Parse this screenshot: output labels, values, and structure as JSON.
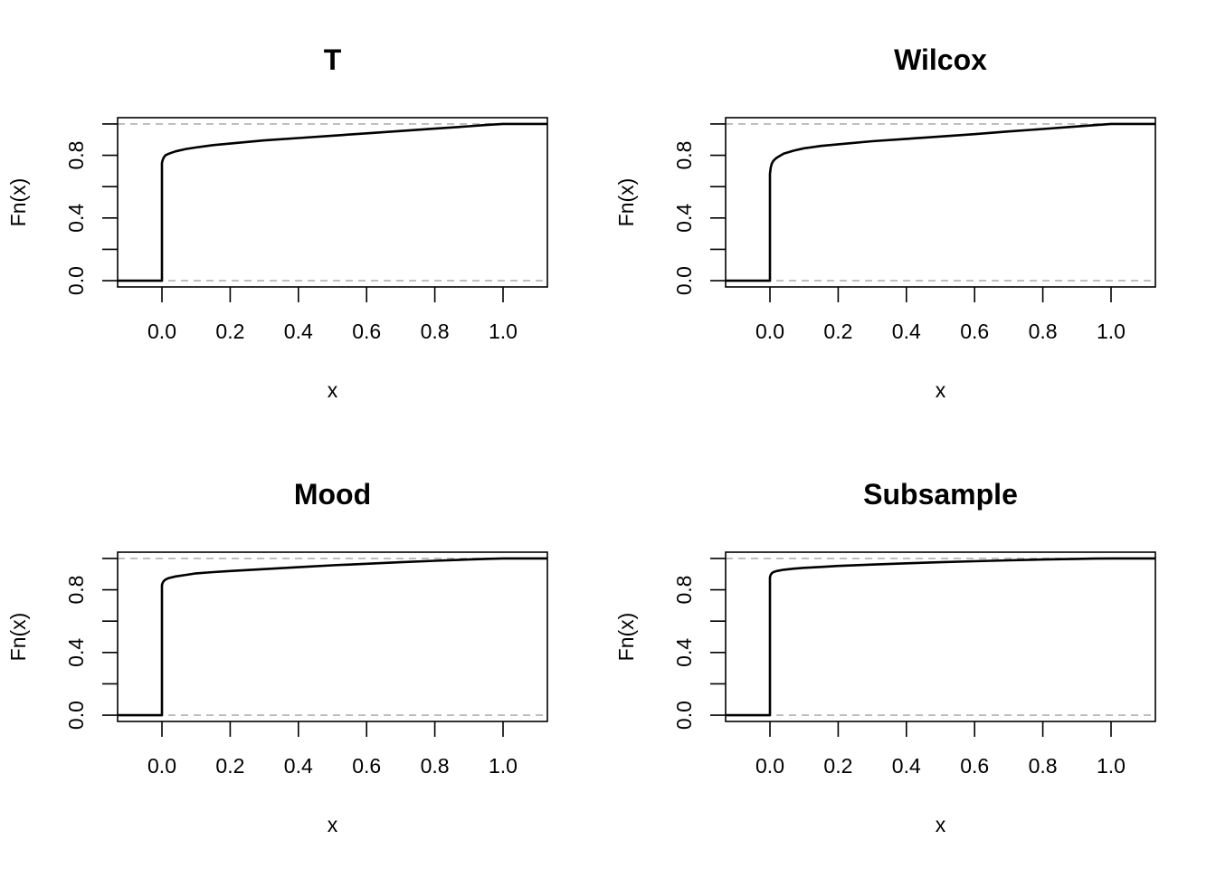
{
  "chart_data": [
    {
      "type": "line",
      "title": "T",
      "xlabel": "x",
      "ylabel": "Fn(x)",
      "xlim": [
        -0.13,
        1.13
      ],
      "ylim": [
        -0.04,
        1.04
      ],
      "xticks": [
        "0.0",
        "0.2",
        "0.4",
        "0.6",
        "0.8",
        "1.0"
      ],
      "yticks": [
        "0.0",
        "0.4",
        "0.8"
      ],
      "reference_lines": [
        0,
        1
      ],
      "series": [
        {
          "x": [
            -0.13,
            0,
            0,
            0.002,
            0.005,
            0.01,
            0.02,
            0.04,
            0.07,
            0.1,
            0.15,
            0.2,
            0.3,
            0.4,
            0.5,
            0.6,
            0.7,
            0.8,
            0.9,
            0.95,
            1.0,
            1.13
          ],
          "y": [
            0,
            0,
            0.75,
            0.77,
            0.785,
            0.8,
            0.81,
            0.825,
            0.84,
            0.85,
            0.865,
            0.875,
            0.895,
            0.91,
            0.925,
            0.94,
            0.955,
            0.97,
            0.985,
            0.993,
            1.0,
            1.0
          ]
        }
      ]
    },
    {
      "type": "line",
      "title": "Wilcox",
      "xlabel": "x",
      "ylabel": "Fn(x)",
      "xlim": [
        -0.13,
        1.13
      ],
      "ylim": [
        -0.04,
        1.04
      ],
      "xticks": [
        "0.0",
        "0.2",
        "0.4",
        "0.6",
        "0.8",
        "1.0"
      ],
      "yticks": [
        "0.0",
        "0.4",
        "0.8"
      ],
      "reference_lines": [
        0,
        1
      ],
      "series": [
        {
          "x": [
            -0.13,
            0,
            0,
            0.002,
            0.005,
            0.01,
            0.02,
            0.04,
            0.07,
            0.1,
            0.15,
            0.2,
            0.3,
            0.4,
            0.5,
            0.6,
            0.7,
            0.8,
            0.9,
            0.95,
            1.0,
            1.13
          ],
          "y": [
            0,
            0,
            0.68,
            0.72,
            0.745,
            0.765,
            0.785,
            0.81,
            0.83,
            0.845,
            0.86,
            0.87,
            0.89,
            0.905,
            0.92,
            0.935,
            0.952,
            0.968,
            0.984,
            0.992,
            1.0,
            1.0
          ]
        }
      ]
    },
    {
      "type": "line",
      "title": "Mood",
      "xlabel": "x",
      "ylabel": "Fn(x)",
      "xlim": [
        -0.13,
        1.13
      ],
      "ylim": [
        -0.04,
        1.04
      ],
      "xticks": [
        "0.0",
        "0.2",
        "0.4",
        "0.6",
        "0.8",
        "1.0"
      ],
      "yticks": [
        "0.0",
        "0.4",
        "0.8"
      ],
      "reference_lines": [
        0,
        1
      ],
      "series": [
        {
          "x": [
            -0.13,
            0,
            0,
            0.002,
            0.005,
            0.01,
            0.02,
            0.04,
            0.07,
            0.1,
            0.15,
            0.2,
            0.3,
            0.4,
            0.5,
            0.6,
            0.7,
            0.8,
            0.9,
            0.95,
            1.0,
            1.13
          ],
          "y": [
            0,
            0,
            0.83,
            0.845,
            0.855,
            0.865,
            0.875,
            0.885,
            0.895,
            0.905,
            0.913,
            0.92,
            0.932,
            0.944,
            0.956,
            0.966,
            0.976,
            0.985,
            0.993,
            0.997,
            1.0,
            1.0
          ]
        }
      ]
    },
    {
      "type": "line",
      "title": "Subsample",
      "xlabel": "x",
      "ylabel": "Fn(x)",
      "xlim": [
        -0.13,
        1.13
      ],
      "ylim": [
        -0.04,
        1.04
      ],
      "xticks": [
        "0.0",
        "0.2",
        "0.4",
        "0.6",
        "0.8",
        "1.0"
      ],
      "yticks": [
        "0.0",
        "0.4",
        "0.8"
      ],
      "reference_lines": [
        0,
        1
      ],
      "series": [
        {
          "x": [
            -0.13,
            0,
            0,
            0.002,
            0.005,
            0.01,
            0.02,
            0.04,
            0.07,
            0.1,
            0.15,
            0.2,
            0.3,
            0.4,
            0.5,
            0.6,
            0.7,
            0.8,
            0.9,
            0.95,
            1.0,
            1.13
          ],
          "y": [
            0,
            0,
            0.88,
            0.895,
            0.905,
            0.913,
            0.92,
            0.928,
            0.935,
            0.94,
            0.946,
            0.952,
            0.961,
            0.969,
            0.976,
            0.982,
            0.988,
            0.993,
            0.997,
            0.999,
            1.0,
            1.0
          ]
        }
      ]
    }
  ]
}
